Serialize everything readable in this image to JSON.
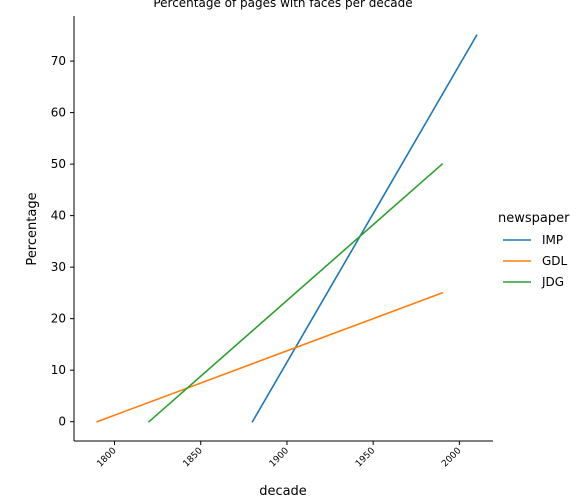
{
  "chart_data": {
    "type": "line",
    "title": "Percentage of pages with faces per decade",
    "xlabel": "decade",
    "ylabel": "Percentage",
    "xlim": [
      1776.5,
      2019.5
    ],
    "ylim": [
      -3.75,
      78.75
    ],
    "x_ticks": [
      1800,
      1850,
      1900,
      1950,
      2000
    ],
    "y_ticks": [
      0,
      10,
      20,
      30,
      40,
      50,
      60,
      70
    ],
    "grid": false,
    "legend": {
      "title": "newspaper",
      "placement": "right"
    },
    "series": [
      {
        "name": "IMP",
        "color": "#1f77b4",
        "points": [
          [
            1880,
            0
          ],
          [
            2010,
            75
          ]
        ]
      },
      {
        "name": "GDL",
        "color": "#ff7f0e",
        "points": [
          [
            1790,
            0
          ],
          [
            1990,
            25
          ]
        ]
      },
      {
        "name": "JDG",
        "color": "#2ca02c",
        "points": [
          [
            1820,
            0
          ],
          [
            1990,
            50
          ]
        ]
      }
    ]
  }
}
